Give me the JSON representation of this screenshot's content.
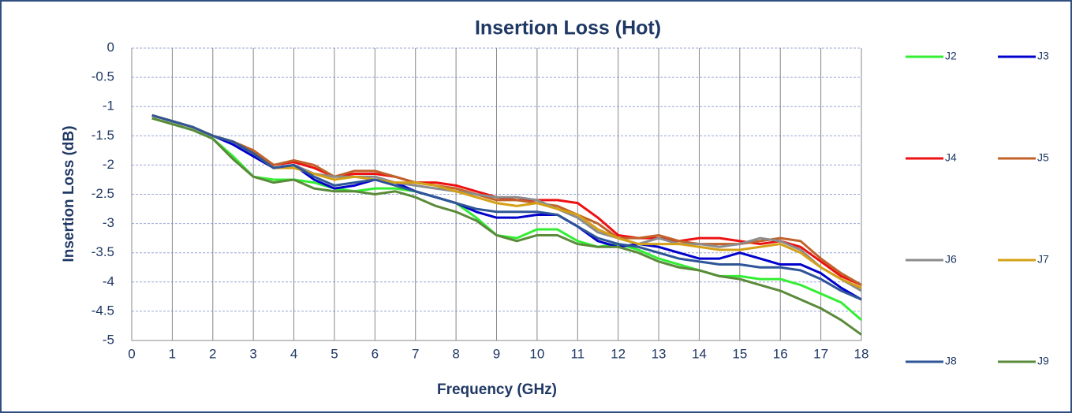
{
  "chart_data": {
    "type": "line",
    "title": "Insertion Loss (Hot)",
    "xlabel": "Frequency (GHz)",
    "ylabel": "Insertion Loss (dB)",
    "x": [
      0.5,
      1,
      1.5,
      2,
      2.5,
      3,
      3.5,
      4,
      4.5,
      5,
      5.5,
      6,
      6.5,
      7,
      7.5,
      8,
      8.5,
      9,
      9.5,
      10,
      10.5,
      11,
      11.5,
      12,
      12.5,
      13,
      13.5,
      14,
      14.5,
      15,
      15.5,
      16,
      16.5,
      17,
      17.5,
      18
    ],
    "series": [
      {
        "name": "J2",
        "color": "#33ee33",
        "values": [
          -1.2,
          -1.3,
          -1.4,
          -1.55,
          -1.85,
          -2.2,
          -2.25,
          -2.25,
          -2.3,
          -2.4,
          -2.45,
          -2.4,
          -2.4,
          -2.45,
          -2.55,
          -2.65,
          -2.9,
          -3.2,
          -3.25,
          -3.1,
          -3.1,
          -3.3,
          -3.4,
          -3.35,
          -3.45,
          -3.6,
          -3.7,
          -3.8,
          -3.9,
          -3.9,
          -3.95,
          -3.95,
          -4.05,
          -4.2,
          -4.35,
          -4.65
        ]
      },
      {
        "name": "J3",
        "color": "#0000cc",
        "values": [
          -1.15,
          -1.25,
          -1.35,
          -1.5,
          -1.65,
          -1.85,
          -2.05,
          -2.0,
          -2.25,
          -2.4,
          -2.35,
          -2.25,
          -2.3,
          -2.45,
          -2.55,
          -2.65,
          -2.8,
          -2.9,
          -2.9,
          -2.85,
          -2.85,
          -3.05,
          -3.3,
          -3.4,
          -3.35,
          -3.4,
          -3.5,
          -3.6,
          -3.6,
          -3.5,
          -3.6,
          -3.7,
          -3.7,
          -3.85,
          -4.1,
          -4.3
        ]
      },
      {
        "name": "J4",
        "color": "#ee1111",
        "values": [
          -1.15,
          -1.25,
          -1.35,
          -1.5,
          -1.6,
          -1.75,
          -2.0,
          -1.95,
          -2.05,
          -2.2,
          -2.15,
          -2.15,
          -2.2,
          -2.3,
          -2.3,
          -2.35,
          -2.45,
          -2.55,
          -2.6,
          -2.6,
          -2.6,
          -2.65,
          -2.9,
          -3.2,
          -3.25,
          -3.25,
          -3.3,
          -3.25,
          -3.25,
          -3.3,
          -3.35,
          -3.3,
          -3.4,
          -3.65,
          -3.9,
          -4.05
        ]
      },
      {
        "name": "J5",
        "color": "#c0622a",
        "values": [
          -1.15,
          -1.25,
          -1.35,
          -1.5,
          -1.6,
          -1.75,
          -2.0,
          -1.92,
          -2.0,
          -2.2,
          -2.1,
          -2.1,
          -2.2,
          -2.3,
          -2.35,
          -2.4,
          -2.5,
          -2.6,
          -2.6,
          -2.65,
          -2.7,
          -2.85,
          -3.0,
          -3.25,
          -3.25,
          -3.2,
          -3.3,
          -3.35,
          -3.35,
          -3.35,
          -3.3,
          -3.25,
          -3.3,
          -3.6,
          -3.85,
          -4.05
        ]
      },
      {
        "name": "J6",
        "color": "#8c8c8c",
        "values": [
          -1.15,
          -1.25,
          -1.35,
          -1.5,
          -1.6,
          -1.8,
          -2.05,
          -2.0,
          -2.15,
          -2.2,
          -2.2,
          -2.2,
          -2.3,
          -2.35,
          -2.4,
          -2.45,
          -2.5,
          -2.55,
          -2.55,
          -2.6,
          -2.75,
          -2.9,
          -3.15,
          -3.25,
          -3.35,
          -3.25,
          -3.35,
          -3.35,
          -3.4,
          -3.35,
          -3.25,
          -3.3,
          -3.45,
          -3.75,
          -3.95,
          -4.15
        ]
      },
      {
        "name": "J7",
        "color": "#d4a017",
        "values": [
          -1.15,
          -1.25,
          -1.35,
          -1.5,
          -1.6,
          -1.8,
          -2.05,
          -2.05,
          -2.15,
          -2.25,
          -2.2,
          -2.25,
          -2.3,
          -2.3,
          -2.35,
          -2.45,
          -2.55,
          -2.65,
          -2.7,
          -2.65,
          -2.75,
          -2.85,
          -3.1,
          -3.25,
          -3.35,
          -3.35,
          -3.35,
          -3.4,
          -3.45,
          -3.45,
          -3.4,
          -3.35,
          -3.5,
          -3.75,
          -3.95,
          -4.1
        ]
      },
      {
        "name": "J8",
        "color": "#2e5597",
        "values": [
          -1.15,
          -1.25,
          -1.35,
          -1.5,
          -1.6,
          -1.8,
          -2.05,
          -2.0,
          -2.2,
          -2.35,
          -2.3,
          -2.25,
          -2.35,
          -2.45,
          -2.55,
          -2.65,
          -2.75,
          -2.8,
          -2.8,
          -2.8,
          -2.85,
          -3.05,
          -3.25,
          -3.35,
          -3.4,
          -3.5,
          -3.6,
          -3.65,
          -3.7,
          -3.7,
          -3.75,
          -3.75,
          -3.8,
          -3.95,
          -4.15,
          -4.3
        ]
      },
      {
        "name": "J9",
        "color": "#5a8a3a",
        "values": [
          -1.2,
          -1.3,
          -1.4,
          -1.55,
          -1.9,
          -2.2,
          -2.3,
          -2.25,
          -2.4,
          -2.45,
          -2.45,
          -2.5,
          -2.45,
          -2.55,
          -2.7,
          -2.8,
          -2.95,
          -3.2,
          -3.3,
          -3.2,
          -3.2,
          -3.35,
          -3.4,
          -3.4,
          -3.5,
          -3.65,
          -3.75,
          -3.8,
          -3.9,
          -3.95,
          -4.05,
          -4.15,
          -4.3,
          -4.45,
          -4.65,
          -4.9
        ]
      }
    ],
    "xlim": [
      0,
      18
    ],
    "xticks": [
      0,
      1,
      2,
      3,
      4,
      5,
      6,
      7,
      8,
      9,
      10,
      11,
      12,
      13,
      14,
      15,
      16,
      17,
      18
    ],
    "ylim": [
      -5,
      0
    ],
    "yticks": [
      0,
      -0.5,
      -1,
      -1.5,
      -2,
      -2.5,
      -3,
      -3.5,
      -4,
      -4.5,
      -5
    ],
    "grid": true,
    "legend": "right"
  }
}
